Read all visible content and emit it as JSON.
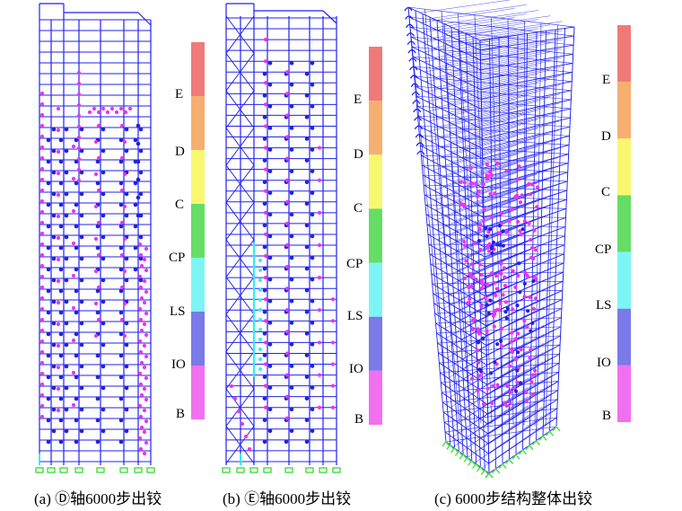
{
  "captions": {
    "a": "(a) Ⓓ轴6000步出铰",
    "b": "(b) Ⓔ轴6000步出铰",
    "c": "(c) 6000步结构整体出铰"
  },
  "legend": {
    "levels": [
      "E",
      "D",
      "C",
      "CP",
      "LS",
      "IO",
      "B"
    ],
    "colors": [
      "#f07a7a",
      "#f5b070",
      "#f8f870",
      "#66dd66",
      "#7ef5f5",
      "#7a7ae8",
      "#f070f0"
    ]
  },
  "colors": {
    "frame": "#2222ee",
    "hinge_b": "#ee33ee",
    "hinge_io": "#2222dd",
    "hinge_ls": "#33eeee",
    "support": "#44dd44"
  }
}
